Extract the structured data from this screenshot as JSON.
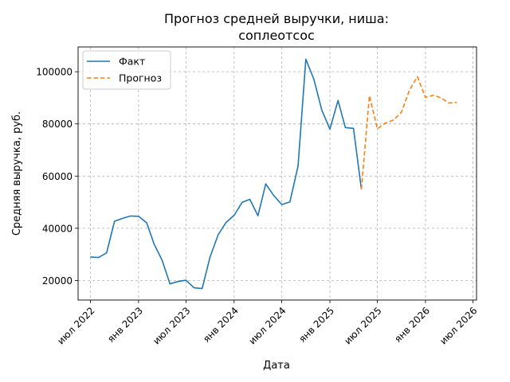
{
  "chart_data": {
    "type": "line",
    "title_line1": "Прогноз средней выручки, ниша:",
    "title_line2": "соплеотсос",
    "xlabel": "Дата",
    "ylabel": "Средняя выручка, руб.",
    "x_tick_labels": [
      "июл 2022",
      "янв 2023",
      "июл 2023",
      "янв 2024",
      "июл 2024",
      "янв 2025",
      "июл 2025",
      "янв 2026",
      "июл 2026"
    ],
    "x_tick_dates": [
      "2022-07-01",
      "2023-01-01",
      "2023-07-01",
      "2024-01-01",
      "2024-07-01",
      "2025-01-01",
      "2025-07-01",
      "2026-01-01",
      "2026-07-01"
    ],
    "y_ticks": [
      20000,
      40000,
      60000,
      80000,
      100000
    ],
    "ylim": [
      12500,
      109500
    ],
    "xlim": [
      "2022-05-15",
      "2026-07-15"
    ],
    "grid": true,
    "legend_position": "top-left",
    "series": [
      {
        "name": "Факт",
        "color": "#1f77b4",
        "style": "solid",
        "x": [
          "2022-07-01",
          "2022-08-01",
          "2022-09-01",
          "2022-10-01",
          "2022-11-01",
          "2022-12-01",
          "2023-01-01",
          "2023-02-01",
          "2023-03-01",
          "2023-04-01",
          "2023-05-01",
          "2023-06-01",
          "2023-07-01",
          "2023-08-01",
          "2023-09-01",
          "2023-10-01",
          "2023-11-01",
          "2023-12-01",
          "2024-01-01",
          "2024-02-01",
          "2024-03-01",
          "2024-04-01",
          "2024-05-01",
          "2024-06-01",
          "2024-07-01",
          "2024-08-01",
          "2024-09-01",
          "2024-10-01",
          "2024-11-01",
          "2024-12-01",
          "2025-01-01",
          "2025-02-01",
          "2025-03-01",
          "2025-04-01",
          "2025-05-01"
        ],
        "y": [
          29000,
          28800,
          30600,
          42700,
          43800,
          44700,
          44600,
          42100,
          34000,
          27700,
          18700,
          19600,
          20100,
          17200,
          16900,
          29000,
          37500,
          42200,
          45000,
          50000,
          51100,
          44800,
          57000,
          52500,
          49100,
          50100,
          63800,
          104800,
          97000,
          85300,
          78000,
          89000,
          78600,
          78300,
          55000
        ]
      },
      {
        "name": "Прогноз",
        "color": "#ff7f0e",
        "style": "dashed",
        "x": [
          "2025-05-01",
          "2025-06-01",
          "2025-07-01",
          "2025-08-01",
          "2025-09-01",
          "2025-10-01",
          "2025-11-01",
          "2025-12-01",
          "2026-01-01",
          "2026-02-01",
          "2026-03-01",
          "2026-04-01",
          "2026-05-01"
        ],
        "y": [
          55000,
          90800,
          78100,
          80300,
          81500,
          84500,
          93000,
          98100,
          90200,
          91000,
          90000,
          88000,
          88300
        ]
      }
    ]
  }
}
